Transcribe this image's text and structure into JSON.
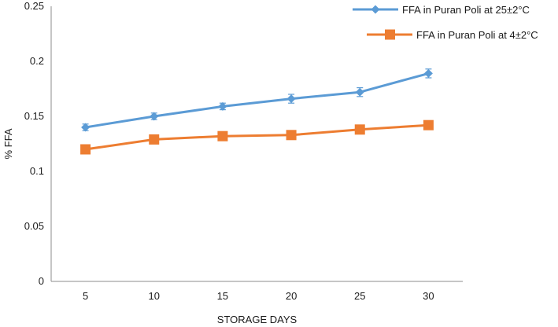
{
  "chart_data": {
    "type": "line",
    "title": "",
    "xlabel": "STORAGE DAYS",
    "ylabel": "% FFA",
    "categories": [
      "5",
      "10",
      "15",
      "20",
      "25",
      "30"
    ],
    "ylim": [
      0,
      0.25
    ],
    "yticks": [
      "0",
      "0.05",
      "0.1",
      "0.15",
      "0.2",
      "0.25"
    ],
    "grid": false,
    "legend_position": "top-right",
    "series": [
      {
        "name": "FFA in Puran Poli at 25±2°C",
        "color": "#5B9BD5",
        "marker": "diamond",
        "values": [
          0.14,
          0.15,
          0.159,
          0.166,
          0.172,
          0.189
        ],
        "error": [
          0.003,
          0.003,
          0.003,
          0.004,
          0.004,
          0.004
        ]
      },
      {
        "name": "FFA in Puran Poli at 4±2°C",
        "color": "#ED7D31",
        "marker": "square",
        "values": [
          0.12,
          0.129,
          0.132,
          0.133,
          0.138,
          0.142
        ],
        "error": [
          0.0,
          0.0,
          0.0,
          0.0,
          0.0,
          0.0
        ]
      }
    ]
  }
}
